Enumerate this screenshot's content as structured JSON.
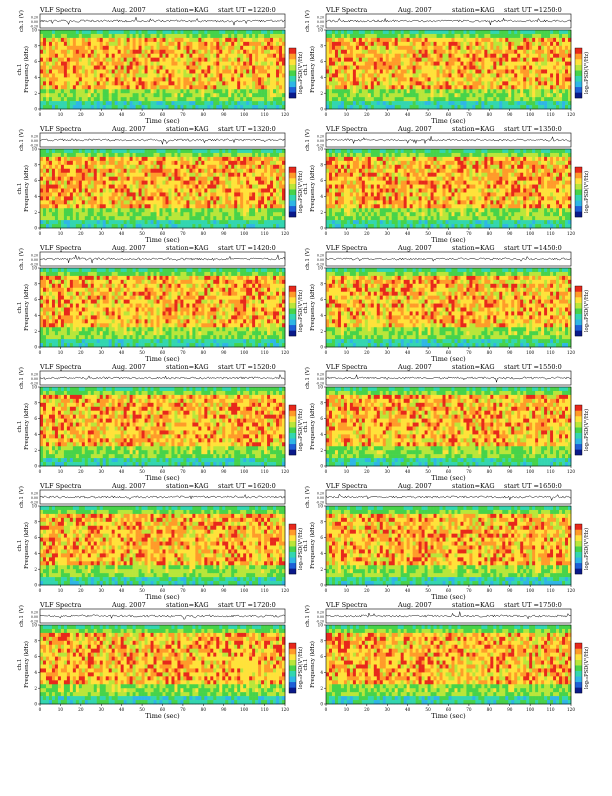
{
  "page": {
    "layout": "6 rows x 2 columns of spectrogram panels"
  },
  "colorbar": {
    "label": "log₁₀PSD(V²/Hz)",
    "colors": [
      "#0a1a8a",
      "#1f5fd6",
      "#2fb6e6",
      "#33d6b0",
      "#47d34a",
      "#b9e63a",
      "#ffe23a",
      "#ff9b2a",
      "#e8281c",
      "#d8d8d8"
    ]
  },
  "chart_data": [
    {
      "type": "heatmap",
      "title_left": "VLF Spectra",
      "date": "Aug. 2007",
      "station": "station=KAG",
      "start": "start UT =1220:0",
      "ylabel_wave": "ch.1 (V)",
      "wave_ticks": [
        "0.20",
        "0.00",
        "-0.20"
      ],
      "ylabel_spec": [
        "Frequency (kHz)",
        "ch.1"
      ],
      "freq_ticks": [
        "10",
        "8",
        "6",
        "4",
        "2",
        "0"
      ],
      "xlabel": "Time (sec)",
      "time_ticks": [
        "0",
        "10",
        "20",
        "30",
        "40",
        "50",
        "60",
        "70",
        "80",
        "90",
        "100",
        "110",
        "120"
      ],
      "xlim": [
        0,
        120
      ],
      "ylim": [
        0,
        10
      ],
      "colorbar_label": "log₁₀PSD(V²/Hz)"
    },
    {
      "type": "heatmap",
      "title_left": "VLF Spectra",
      "date": "Aug. 2007",
      "station": "station=KAG",
      "start": "start UT =1250:0",
      "ylabel_wave": "ch.1 (V)",
      "wave_ticks": [
        "0.20",
        "0.00",
        "-0.20"
      ],
      "ylabel_spec": [
        "Frequency (kHz)",
        "ch.1"
      ],
      "freq_ticks": [
        "10",
        "8",
        "6",
        "4",
        "2",
        "0"
      ],
      "xlabel": "Time (sec)",
      "time_ticks": [
        "0",
        "10",
        "20",
        "30",
        "40",
        "50",
        "60",
        "70",
        "80",
        "90",
        "100",
        "110",
        "120"
      ],
      "xlim": [
        0,
        120
      ],
      "ylim": [
        0,
        10
      ],
      "colorbar_label": "log₁₀PSD(V²/Hz)"
    },
    {
      "type": "heatmap",
      "title_left": "VLF Spectra",
      "date": "Aug. 2007",
      "station": "station=KAG",
      "start": "start UT =1320:0",
      "ylabel_wave": "ch.1 (V)",
      "wave_ticks": [
        "0.20",
        "0.00",
        "-0.20"
      ],
      "ylabel_spec": [
        "Frequency (kHz)",
        "ch.1"
      ],
      "freq_ticks": [
        "10",
        "8",
        "6",
        "4",
        "2",
        "0"
      ],
      "xlabel": "Time (sec)",
      "time_ticks": [
        "0",
        "10",
        "20",
        "30",
        "40",
        "50",
        "60",
        "70",
        "80",
        "90",
        "100",
        "110",
        "120"
      ],
      "xlim": [
        0,
        120
      ],
      "ylim": [
        0,
        10
      ],
      "colorbar_label": "log₁₀PSD(V²/Hz)"
    },
    {
      "type": "heatmap",
      "title_left": "VLF Spectra",
      "date": "Aug. 2007",
      "station": "station=KAG",
      "start": "start UT =1350:0",
      "ylabel_wave": "ch.1 (V)",
      "wave_ticks": [
        "0.20",
        "0.00",
        "-0.20"
      ],
      "ylabel_spec": [
        "Frequency (kHz)",
        "ch.1"
      ],
      "freq_ticks": [
        "10",
        "8",
        "6",
        "4",
        "2",
        "0"
      ],
      "xlabel": "Time (sec)",
      "time_ticks": [
        "0",
        "10",
        "20",
        "30",
        "40",
        "50",
        "60",
        "70",
        "80",
        "90",
        "100",
        "110",
        "120"
      ],
      "xlim": [
        0,
        120
      ],
      "ylim": [
        0,
        10
      ],
      "colorbar_label": "log₁₀PSD(V²/Hz)"
    },
    {
      "type": "heatmap",
      "title_left": "VLF Spectra",
      "date": "Aug. 2007",
      "station": "station=KAG",
      "start": "start UT =1420:0",
      "ylabel_wave": "ch.1 (V)",
      "wave_ticks": [
        "0.20",
        "0.00",
        "-0.20"
      ],
      "ylabel_spec": [
        "Frequency (kHz)",
        "ch.1"
      ],
      "freq_ticks": [
        "10",
        "8",
        "6",
        "4",
        "2",
        "0"
      ],
      "xlabel": "Time (sec)",
      "time_ticks": [
        "0",
        "10",
        "20",
        "30",
        "40",
        "50",
        "60",
        "70",
        "80",
        "90",
        "100",
        "110",
        "120"
      ],
      "xlim": [
        0,
        120
      ],
      "ylim": [
        0,
        10
      ],
      "colorbar_label": "log₁₀PSD(V²/Hz)"
    },
    {
      "type": "heatmap",
      "title_left": "VLF Spectra",
      "date": "Aug. 2007",
      "station": "station=KAG",
      "start": "start UT =1450:0",
      "ylabel_wave": "ch.1 (V)",
      "wave_ticks": [
        "0.20",
        "0.00",
        "-0.20"
      ],
      "ylabel_spec": [
        "Frequency (kHz)",
        "ch.1"
      ],
      "freq_ticks": [
        "10",
        "8",
        "6",
        "4",
        "2",
        "0"
      ],
      "xlabel": "Time (sec)",
      "time_ticks": [
        "0",
        "10",
        "20",
        "30",
        "40",
        "50",
        "60",
        "70",
        "80",
        "90",
        "100",
        "110",
        "120"
      ],
      "xlim": [
        0,
        120
      ],
      "ylim": [
        0,
        10
      ],
      "colorbar_label": "log₁₀PSD(V²/Hz)"
    },
    {
      "type": "heatmap",
      "title_left": "VLF Spectra",
      "date": "Aug. 2007",
      "station": "station=KAG",
      "start": "start UT =1520:0",
      "ylabel_wave": "ch.1 (V)",
      "wave_ticks": [
        "0.20",
        "0.00",
        "-0.20"
      ],
      "ylabel_spec": [
        "Frequency (kHz)",
        "ch.1"
      ],
      "freq_ticks": [
        "10",
        "8",
        "6",
        "4",
        "2",
        "0"
      ],
      "xlabel": "Time (sec)",
      "time_ticks": [
        "0",
        "10",
        "20",
        "30",
        "40",
        "50",
        "60",
        "70",
        "80",
        "90",
        "100",
        "110",
        "120"
      ],
      "xlim": [
        0,
        120
      ],
      "ylim": [
        0,
        10
      ],
      "colorbar_label": "log₁₀PSD(V²/Hz)"
    },
    {
      "type": "heatmap",
      "title_left": "VLF Spectra",
      "date": "Aug. 2007",
      "station": "station=KAG",
      "start": "start UT =1550:0",
      "ylabel_wave": "ch.1 (V)",
      "wave_ticks": [
        "0.20",
        "0.00",
        "-0.20"
      ],
      "ylabel_spec": [
        "Frequency (kHz)",
        "ch.1"
      ],
      "freq_ticks": [
        "10",
        "8",
        "6",
        "4",
        "2",
        "0"
      ],
      "xlabel": "Time (sec)",
      "time_ticks": [
        "0",
        "10",
        "20",
        "30",
        "40",
        "50",
        "60",
        "70",
        "80",
        "90",
        "100",
        "110",
        "120"
      ],
      "xlim": [
        0,
        120
      ],
      "ylim": [
        0,
        10
      ],
      "colorbar_label": "log₁₀PSD(V²/Hz)"
    },
    {
      "type": "heatmap",
      "title_left": "VLF Spectra",
      "date": "Aug. 2007",
      "station": "station=KAG",
      "start": "start UT =1620:0",
      "ylabel_wave": "ch.1 (V)",
      "wave_ticks": [
        "0.20",
        "0.00",
        "-0.20"
      ],
      "ylabel_spec": [
        "Frequency (kHz)",
        "ch.1"
      ],
      "freq_ticks": [
        "10",
        "8",
        "6",
        "4",
        "2",
        "0"
      ],
      "xlabel": "Time (sec)",
      "time_ticks": [
        "0",
        "10",
        "20",
        "30",
        "40",
        "50",
        "60",
        "70",
        "80",
        "90",
        "100",
        "110",
        "120"
      ],
      "xlim": [
        0,
        120
      ],
      "ylim": [
        0,
        10
      ],
      "colorbar_label": "log₁₀PSD(V²/Hz)"
    },
    {
      "type": "heatmap",
      "title_left": "VLF Spectra",
      "date": "Aug. 2007",
      "station": "station=KAG",
      "start": "start UT =1650:0",
      "ylabel_wave": "ch.1 (V)",
      "wave_ticks": [
        "0.20",
        "0.00",
        "-0.20"
      ],
      "ylabel_spec": [
        "Frequency (kHz)",
        "ch.1"
      ],
      "freq_ticks": [
        "10",
        "8",
        "6",
        "4",
        "2",
        "0"
      ],
      "xlabel": "Time (sec)",
      "time_ticks": [
        "0",
        "10",
        "20",
        "30",
        "40",
        "50",
        "60",
        "70",
        "80",
        "90",
        "100",
        "110",
        "120"
      ],
      "xlim": [
        0,
        120
      ],
      "ylim": [
        0,
        10
      ],
      "colorbar_label": "log₁₀PSD(V²/Hz)"
    },
    {
      "type": "heatmap",
      "title_left": "VLF Spectra",
      "date": "Aug. 2007",
      "station": "station=KAG",
      "start": "start UT =1720:0",
      "ylabel_wave": "ch.1 (V)",
      "wave_ticks": [
        "0.20",
        "0.00",
        "-0.20"
      ],
      "ylabel_spec": [
        "Frequency (kHz)",
        "ch.1"
      ],
      "freq_ticks": [
        "10",
        "8",
        "6",
        "4",
        "2",
        "0"
      ],
      "xlabel": "Time (sec)",
      "time_ticks": [
        "0",
        "10",
        "20",
        "30",
        "40",
        "50",
        "60",
        "70",
        "80",
        "90",
        "100",
        "110",
        "120"
      ],
      "xlim": [
        0,
        120
      ],
      "ylim": [
        0,
        10
      ],
      "colorbar_label": "log₁₀PSD(V²/Hz)"
    },
    {
      "type": "heatmap",
      "title_left": "VLF Spectra",
      "date": "Aug. 2007",
      "station": "station=KAG",
      "start": "start UT =1750:0",
      "ylabel_wave": "ch.1 (V)",
      "wave_ticks": [
        "0.20",
        "0.00",
        "-0.20"
      ],
      "ylabel_spec": [
        "Frequency (kHz)",
        "ch.1"
      ],
      "freq_ticks": [
        "10",
        "8",
        "6",
        "4",
        "2",
        "0"
      ],
      "xlabel": "Time (sec)",
      "time_ticks": [
        "0",
        "10",
        "20",
        "30",
        "40",
        "50",
        "60",
        "70",
        "80",
        "90",
        "100",
        "110",
        "120"
      ],
      "xlim": [
        0,
        120
      ],
      "ylim": [
        0,
        10
      ],
      "colorbar_label": "log₁₀PSD(V²/Hz)"
    }
  ]
}
